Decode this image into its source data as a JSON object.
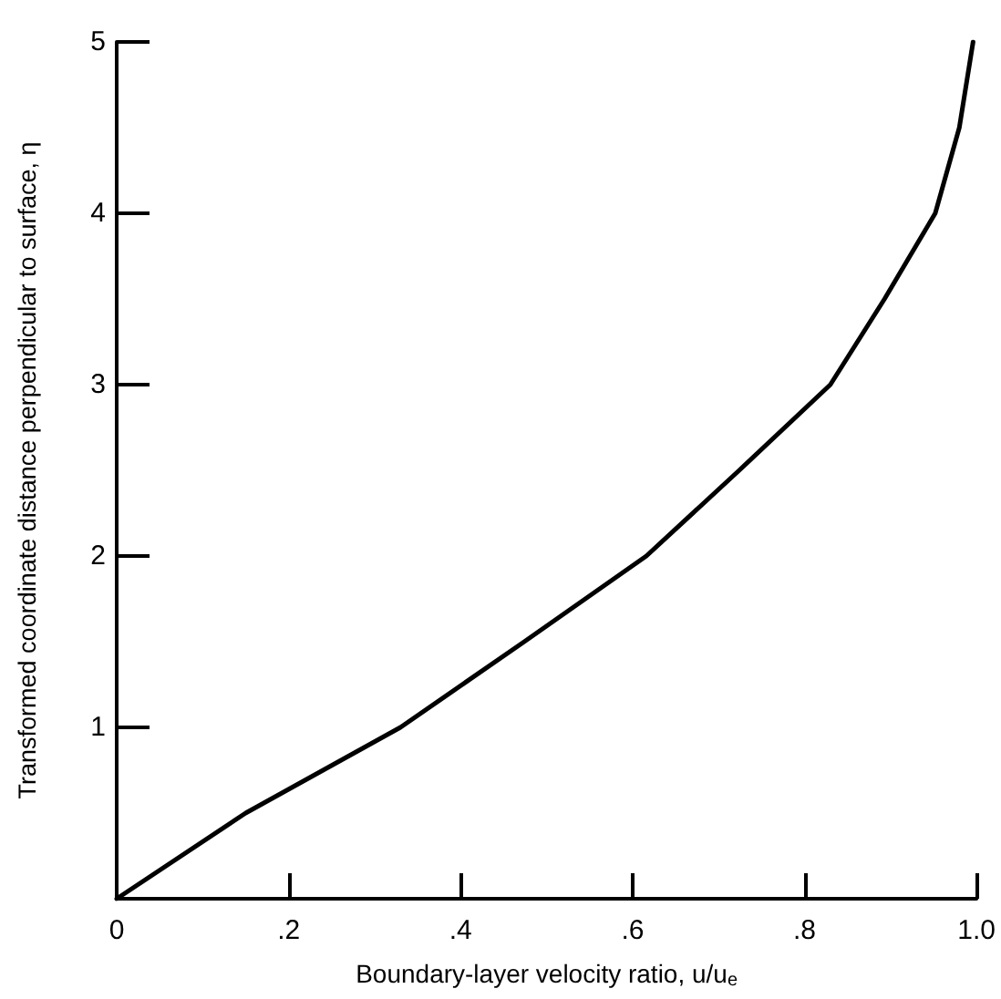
{
  "chart_data": {
    "type": "line",
    "xlabel": "Boundary-layer velocity ratio, u/u$_{e}$",
    "ylabel": "Transformed coordinate distance perpendicular to surface, η",
    "x": [
      0,
      0.15,
      0.33,
      0.474,
      0.616,
      0.724,
      0.83,
      0.893,
      0.952,
      0.98,
      0.996
    ],
    "series": [
      {
        "color": "#000000",
        "values": [
          0,
          0.5,
          1,
          1.5,
          2,
          2.5,
          3,
          3.5,
          4,
          4.5,
          5
        ]
      }
    ],
    "xlim": [
      0,
      1
    ],
    "xticks": [
      0,
      {
        "value": 0.2,
        "label": ".2"
      },
      {
        "value": 0.4,
        "label": ".4"
      },
      {
        "value": 0.6,
        "label": ".6"
      },
      {
        "value": 0.8,
        "label": ".8"
      },
      {
        "value": 1,
        "label": "1.0"
      }
    ],
    "ylim": [
      0,
      5
    ],
    "yticks": [
      1,
      2,
      3,
      4,
      5
    ],
    "marker": "none",
    "line_style": "solid"
  }
}
